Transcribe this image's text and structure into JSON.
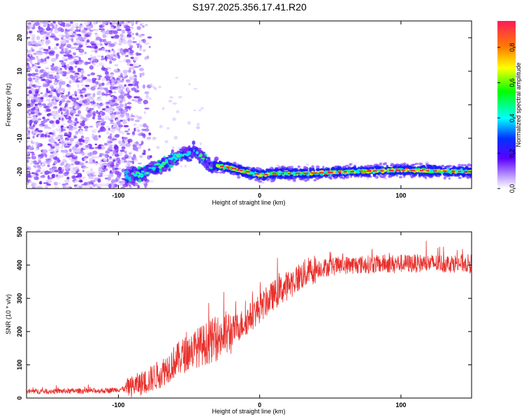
{
  "title": "S197.2025.356.17.41.R20",
  "chart_data": [
    {
      "type": "heatmap",
      "name": "spectrogram",
      "xlabel": "Height of straight line (km)",
      "ylabel": "Frequency (Hz)",
      "xlim": [
        -165,
        150
      ],
      "ylim": [
        -25,
        25
      ],
      "xticks": [
        -100,
        0,
        100
      ],
      "yticks": [
        -20,
        -10,
        0,
        10,
        20
      ],
      "colorbar": {
        "label": "Normalized spectral amplitude",
        "range": [
          0,
          0.95
        ],
        "ticks": [
          0.0,
          0.2,
          0.4,
          0.6,
          0.8
        ]
      },
      "ridge": [
        {
          "x": -85,
          "y": -21
        },
        {
          "x": -75,
          "y": -19
        },
        {
          "x": -65,
          "y": -17
        },
        {
          "x": -55,
          "y": -15
        },
        {
          "x": -45,
          "y": -14
        },
        {
          "x": -35,
          "y": -18
        },
        {
          "x": -25,
          "y": -18.5
        },
        {
          "x": -15,
          "y": -19.5
        },
        {
          "x": -5,
          "y": -20.5
        },
        {
          "x": 0,
          "y": -21
        },
        {
          "x": 10,
          "y": -20.5
        },
        {
          "x": 30,
          "y": -20.5
        },
        {
          "x": 60,
          "y": -20
        },
        {
          "x": 100,
          "y": -19.5
        },
        {
          "x": 150,
          "y": -20
        }
      ]
    },
    {
      "type": "line",
      "name": "snr",
      "xlabel": "Height of straight line (km)",
      "ylabel": "SNR (10 * v/v)",
      "xlim": [
        -165,
        150
      ],
      "ylim": [
        0,
        500
      ],
      "xticks": [
        -100,
        0,
        100
      ],
      "yticks": [
        0,
        100,
        200,
        300,
        400,
        500
      ],
      "color": "#e8302c",
      "trend": [
        {
          "x": -165,
          "y": 20
        },
        {
          "x": -110,
          "y": 22
        },
        {
          "x": -95,
          "y": 28
        },
        {
          "x": -80,
          "y": 50
        },
        {
          "x": -70,
          "y": 75
        },
        {
          "x": -60,
          "y": 110
        },
        {
          "x": -50,
          "y": 140
        },
        {
          "x": -40,
          "y": 160
        },
        {
          "x": -30,
          "y": 180
        },
        {
          "x": -20,
          "y": 200
        },
        {
          "x": -10,
          "y": 230
        },
        {
          "x": 0,
          "y": 270
        },
        {
          "x": 10,
          "y": 310
        },
        {
          "x": 20,
          "y": 340
        },
        {
          "x": 30,
          "y": 370
        },
        {
          "x": 40,
          "y": 390
        },
        {
          "x": 60,
          "y": 400
        },
        {
          "x": 100,
          "y": 405
        },
        {
          "x": 150,
          "y": 405
        }
      ]
    }
  ]
}
